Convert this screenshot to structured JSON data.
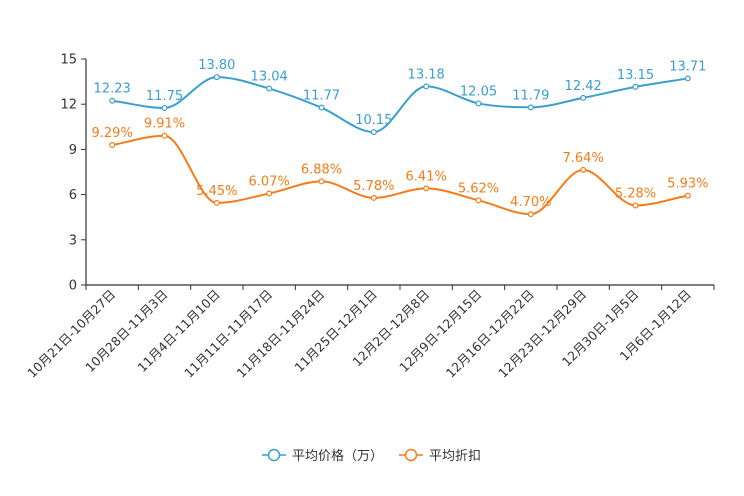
{
  "chart_data": {
    "type": "line",
    "title": "",
    "xlabel": "",
    "ylabel": "",
    "ylim": [
      0,
      15
    ],
    "yticks": [
      0,
      3,
      6,
      9,
      12,
      15
    ],
    "ytick_labels": [
      "0",
      "3",
      "6",
      "9",
      "12",
      "15"
    ],
    "grid": false,
    "legend_position": "bottom-center",
    "categories": [
      "10月21日-10月27日",
      "10月28日-11月3日",
      "11月4日-11月10日",
      "11月11日-11月17日",
      "11月18日-11月24日",
      "11月25日-12月1日",
      "12月2日-12月8日",
      "12月9日-12月15日",
      "12月16日-12月22日",
      "12月23日-12月29日",
      "12月30日-1月5日",
      "1月6日-1月12日"
    ],
    "series": [
      {
        "name": "平均价格（万）",
        "color": "#3a9fd0",
        "values": [
          12.23,
          11.75,
          13.8,
          13.04,
          11.77,
          10.15,
          13.18,
          12.05,
          11.79,
          12.42,
          13.15,
          13.71
        ],
        "labels": [
          "12.23",
          "11.75",
          "13.80",
          "13.04",
          "11.77",
          "10.15",
          "13.18",
          "12.05",
          "11.79",
          "12.42",
          "13.15",
          "13.71"
        ]
      },
      {
        "name": "平均折扣",
        "color": "#f57c18",
        "values": [
          9.29,
          9.91,
          5.45,
          6.07,
          6.88,
          5.78,
          6.41,
          5.62,
          4.7,
          7.64,
          5.28,
          5.93
        ],
        "labels": [
          "9.29%",
          "9.91%",
          "5.45%",
          "6.07%",
          "6.88%",
          "5.78%",
          "6.41%",
          "5.62%",
          "4.70%",
          "7.64%",
          "5.28%",
          "5.93%"
        ]
      }
    ]
  }
}
